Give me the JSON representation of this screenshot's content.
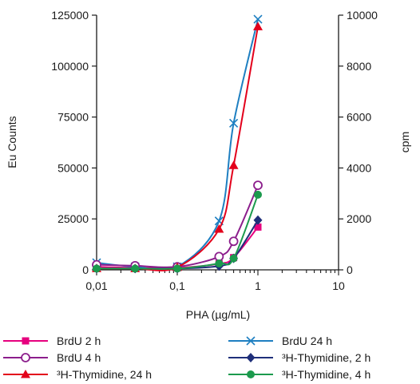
{
  "chart_data": {
    "type": "line",
    "title": "",
    "xlabel": "PHA (µg/mL)",
    "ylabel": "Eu Counts",
    "y2label": "cpm",
    "xscale": "log",
    "xlim": [
      0.01,
      10
    ],
    "ylim": [
      0,
      125000
    ],
    "y2lim": [
      0,
      10000
    ],
    "x_ticks": [
      {
        "value": 0.01,
        "label": "0,01"
      },
      {
        "value": 0.1,
        "label": "0,1"
      },
      {
        "value": 1,
        "label": "1"
      },
      {
        "value": 10,
        "label": "10"
      }
    ],
    "y_ticks": [
      {
        "value": 0,
        "label": "0"
      },
      {
        "value": 25000,
        "label": "25000"
      },
      {
        "value": 50000,
        "label": "50000"
      },
      {
        "value": 75000,
        "label": "75000"
      },
      {
        "value": 100000,
        "label": "100000"
      },
      {
        "value": 125000,
        "label": "125000"
      }
    ],
    "y2_ticks": [
      {
        "value": 0,
        "label": "0"
      },
      {
        "value": 2000,
        "label": "2000"
      },
      {
        "value": 4000,
        "label": "4000"
      },
      {
        "value": 6000,
        "label": "6000"
      },
      {
        "value": 8000,
        "label": "8000"
      },
      {
        "value": 10000,
        "label": "10000"
      }
    ],
    "grid": false,
    "legend_position": "bottom",
    "series": [
      {
        "name": "BrdU 2 h",
        "axis": "left",
        "color": "#e6007e",
        "marker": "square",
        "x": [
          0.01,
          0.03,
          0.1,
          0.33,
          0.5,
          1
        ],
        "y": [
          1500,
          1000,
          1000,
          3000,
          6000,
          21000
        ]
      },
      {
        "name": "BrdU 24 h",
        "axis": "left",
        "color": "#1e7fc1",
        "marker": "x",
        "x": [
          0.01,
          0.03,
          0.1,
          0.33,
          0.5,
          1
        ],
        "y": [
          3500,
          1500,
          1500,
          24000,
          72000,
          123000
        ]
      },
      {
        "name": "BrdU 4 h",
        "axis": "left",
        "color": "#8c1e8c",
        "marker": "circle-open",
        "x": [
          0.01,
          0.03,
          0.1,
          0.33,
          0.5,
          1
        ],
        "y": [
          2500,
          2000,
          1500,
          6500,
          14000,
          41500
        ]
      },
      {
        "name": "³H-Thymidine, 2 h",
        "axis": "right",
        "color": "#1f2f7a",
        "marker": "diamond",
        "x": [
          0.01,
          0.03,
          0.1,
          0.33,
          0.5,
          1
        ],
        "y": [
          50,
          50,
          50,
          150,
          450,
          1950
        ]
      },
      {
        "name": "³H-Thymidine, 24 h",
        "axis": "right",
        "color": "#e3001b",
        "marker": "triangle",
        "x": [
          0.01,
          0.03,
          0.1,
          0.33,
          0.5,
          1
        ],
        "y": [
          50,
          50,
          100,
          1600,
          4100,
          9550
        ]
      },
      {
        "name": "³H-Thymidine, 4 h",
        "axis": "right",
        "color": "#1c9a4d",
        "marker": "circle",
        "x": [
          0.01,
          0.03,
          0.1,
          0.33,
          0.5,
          1
        ],
        "y": [
          50,
          50,
          50,
          250,
          450,
          2950
        ]
      }
    ]
  }
}
